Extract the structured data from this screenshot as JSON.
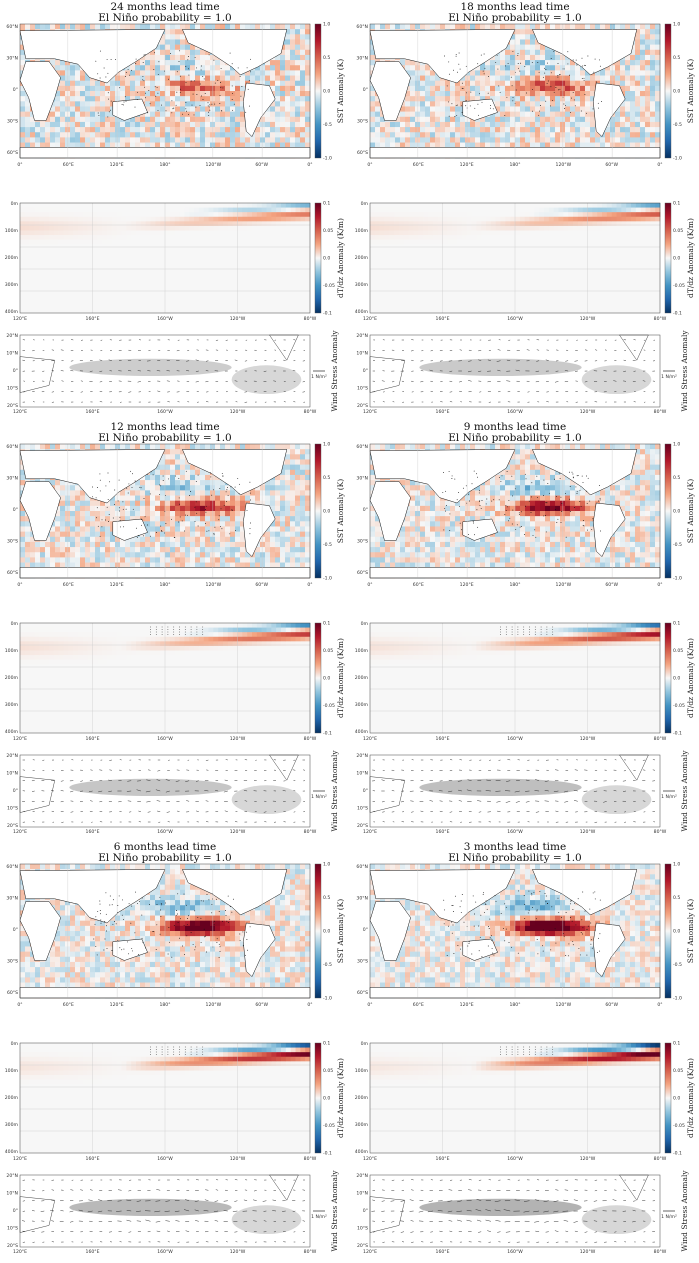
{
  "figure": {
    "colors": {
      "neg_strong": "#2166ac",
      "neg_mid": "#4393c3",
      "neg_light": "#92c5de",
      "pos_light": "#f4a582",
      "pos_mid": "#d6604d",
      "pos_strong": "#b2182b",
      "pos_max": "#67001f",
      "neg_max": "#053061",
      "land": "#ffffff",
      "wind_shade": "#9a9a9a",
      "grid": "#cccccc"
    },
    "panels": [
      {
        "id": "lead24",
        "title_line1": "24 months lead time",
        "title_line2": "El Niño probability = 1.0",
        "lead_months": 24,
        "intensity": 0.35
      },
      {
        "id": "lead18",
        "title_line1": "18 months lead time",
        "title_line2": "El Niño probability = 1.0",
        "lead_months": 18,
        "intensity": 0.45
      },
      {
        "id": "lead12",
        "title_line1": "12 months lead time",
        "title_line2": "El Niño probability = 1.0",
        "lead_months": 12,
        "intensity": 0.55
      },
      {
        "id": "lead9",
        "title_line1": "9 months lead time",
        "title_line2": "El Niño probability = 1.0",
        "lead_months": 9,
        "intensity": 0.7
      },
      {
        "id": "lead6",
        "title_line1": "6 months lead time",
        "title_line2": "El Niño probability = 1.0",
        "lead_months": 6,
        "intensity": 0.85
      },
      {
        "id": "lead3",
        "title_line1": "3 months lead time",
        "title_line2": "El Niño probability = 1.0",
        "lead_months": 3,
        "intensity": 1.0
      }
    ]
  },
  "chart_data": [
    {
      "type": "heatmap",
      "name": "sst_anomaly_map",
      "colorbar_label": "SST Anomaly (K)",
      "colorbar_ticks": [
        "-1.0",
        "-0.5",
        "0.0",
        "0.5",
        "1.0"
      ],
      "clim": [
        -1.0,
        1.0
      ],
      "lat_ticks": [
        "60°N",
        "30°N",
        "0°",
        "30°S",
        "60°S"
      ],
      "lon_ticks": [
        "0°",
        "60°E",
        "120°E",
        "180°",
        "120°W",
        "60°W",
        "0°"
      ]
    },
    {
      "type": "heatmap",
      "name": "equatorial_dTdz_section",
      "colorbar_label": "dT/dz Anomaly (K/m)",
      "colorbar_ticks": [
        "-0.1",
        "-0.05",
        "0.0",
        "0.05",
        "0.1"
      ],
      "clim": [
        -0.1,
        0.1
      ],
      "depth_ticks": [
        "0m",
        "100m",
        "200m",
        "300m",
        "400m"
      ],
      "lon_ticks": [
        "120°E",
        "160°E",
        "160°W",
        "120°W",
        "80°W"
      ]
    },
    {
      "type": "heatmap",
      "name": "wind_stress_map",
      "colorbar_label": "Wind Stress Anomaly",
      "reference_vector_label": "1 N/m²",
      "lat_ticks": [
        "20°N",
        "10°N",
        "0°",
        "10°S",
        "20°S"
      ],
      "lon_ticks": [
        "120°E",
        "160°E",
        "160°W",
        "120°W",
        "80°W"
      ]
    }
  ]
}
